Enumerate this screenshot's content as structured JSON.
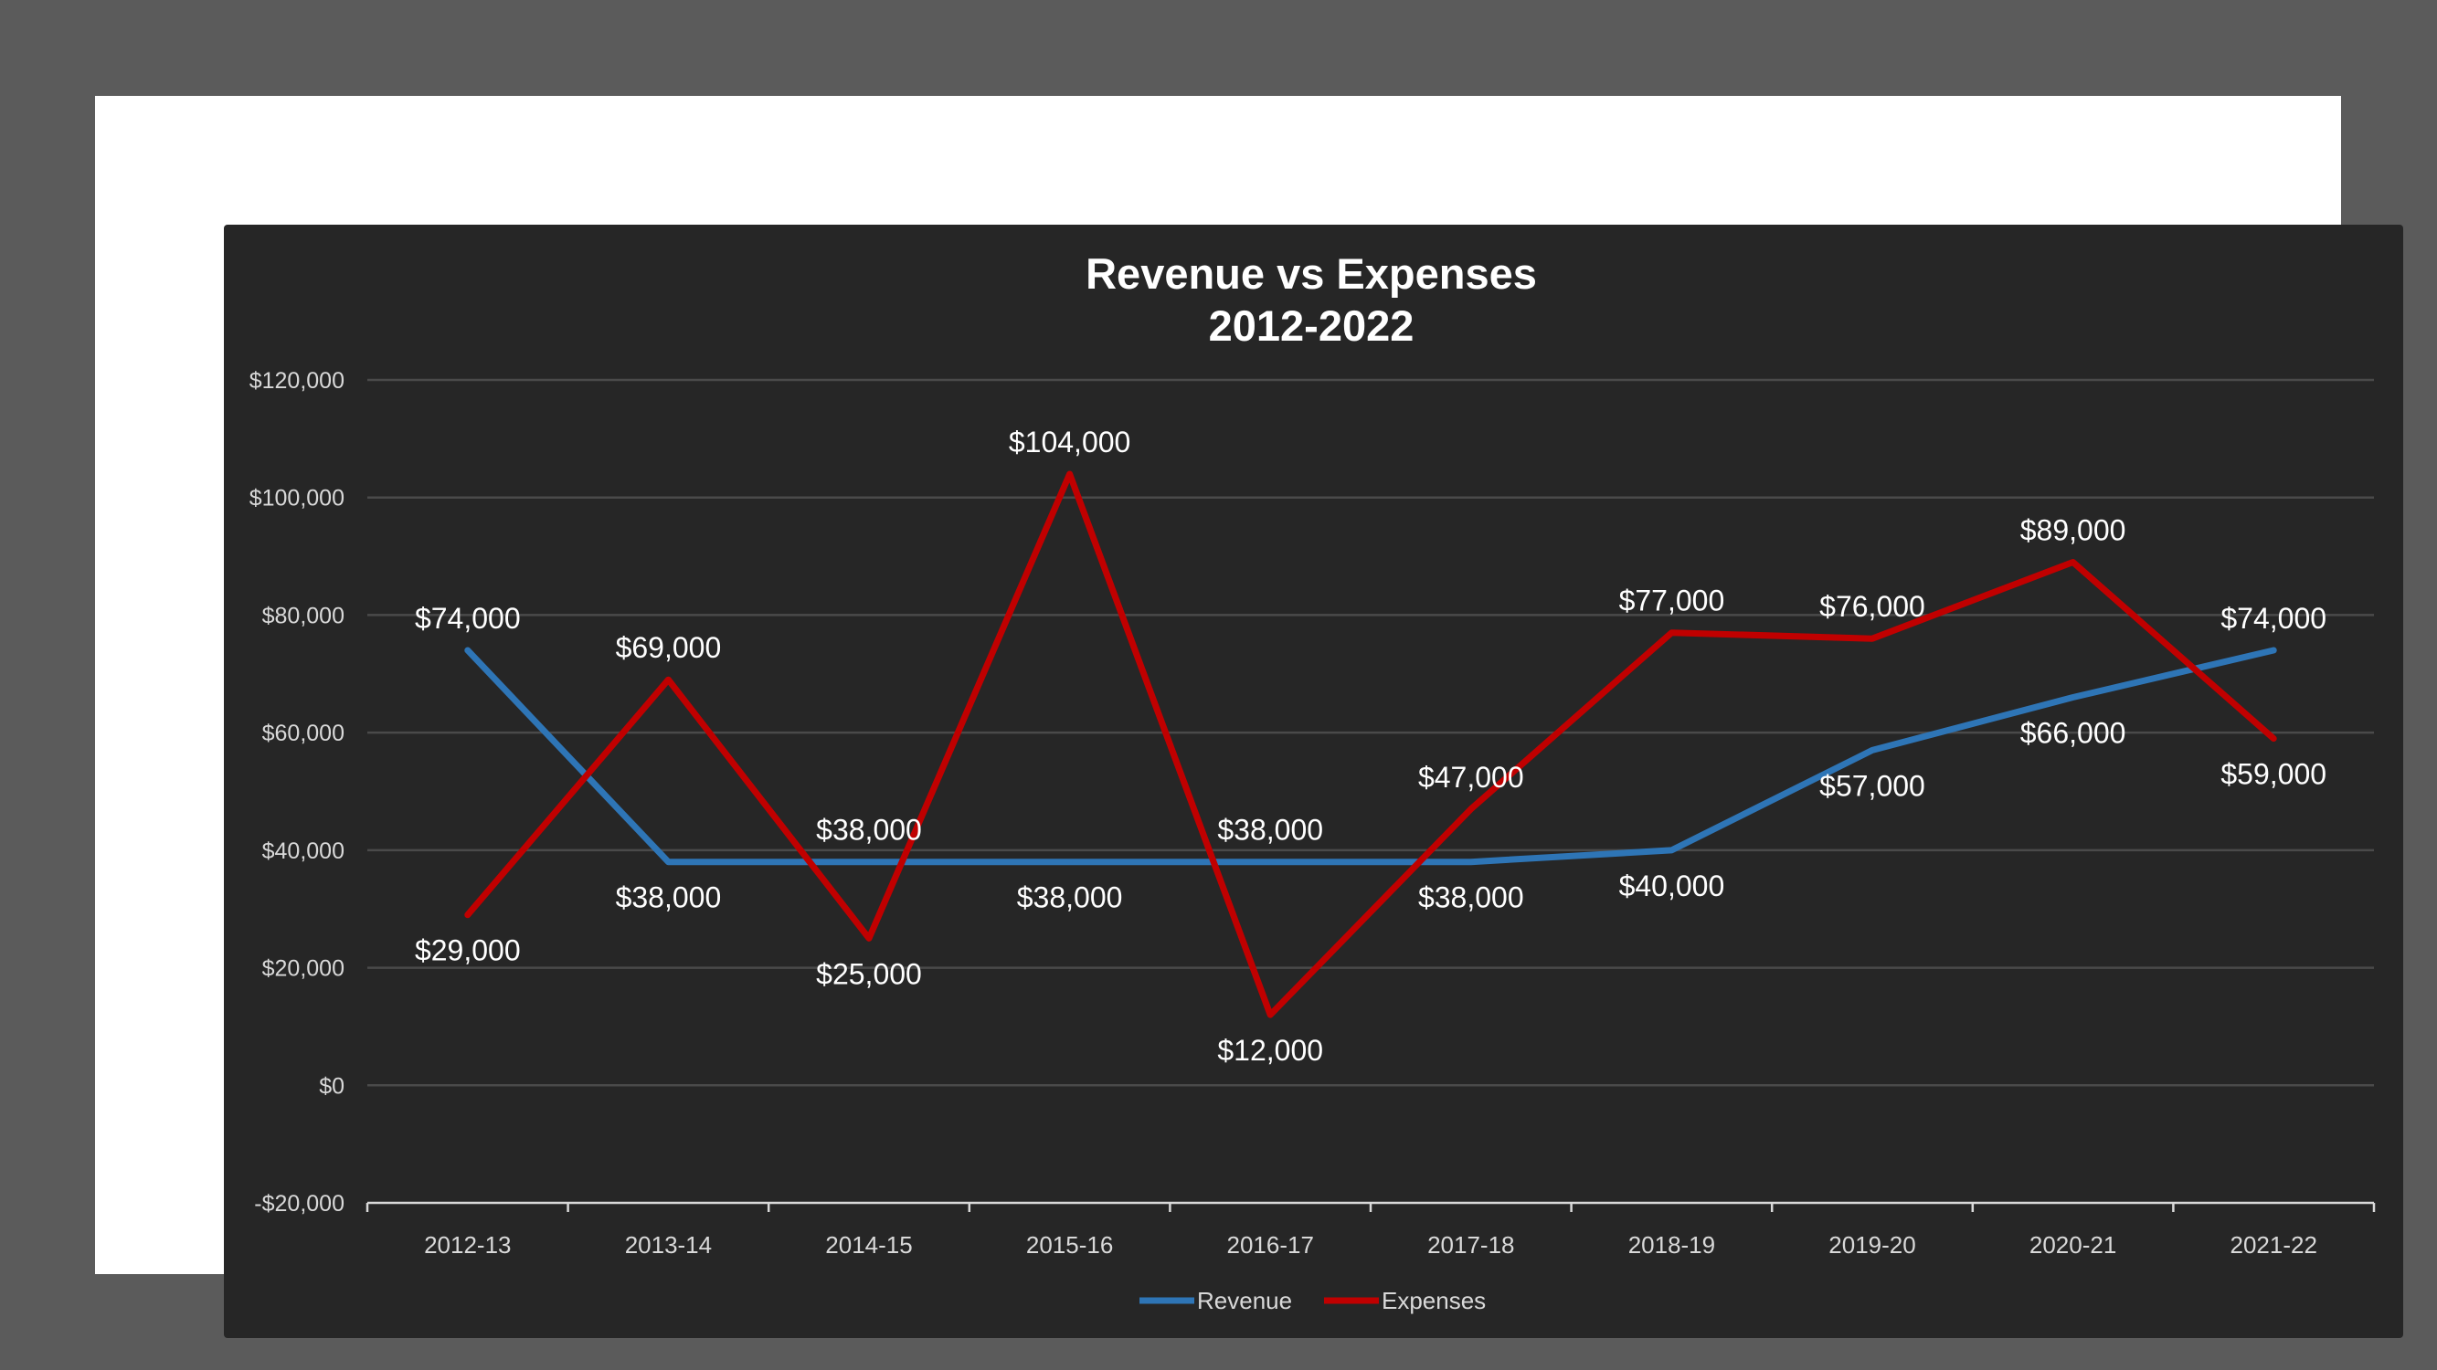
{
  "chart_data": {
    "type": "line",
    "title_line1": "Revenue vs Expenses",
    "title_line2": "2012-2022",
    "categories": [
      "2012-13",
      "2013-14",
      "2014-15",
      "2015-16",
      "2016-17",
      "2017-18",
      "2018-19",
      "2019-20",
      "2020-21",
      "2021-22"
    ],
    "ylim": [
      -20000,
      120000
    ],
    "yticks": [
      -20000,
      0,
      20000,
      40000,
      60000,
      80000,
      100000,
      120000
    ],
    "ytick_labels": [
      "-$20,000",
      "$0",
      "$20,000",
      "$40,000",
      "$60,000",
      "$80,000",
      "$100,000",
      "$120,000"
    ],
    "grid": true,
    "legend_position": "bottom",
    "series": [
      {
        "name": "Revenue",
        "color": "#2e75b6",
        "values": [
          74000,
          38000,
          38000,
          38000,
          38000,
          38000,
          40000,
          57000,
          66000,
          74000
        ],
        "labels": [
          "$74,000",
          "$38,000",
          "$38,000",
          "$38,000",
          "$38,000",
          "$38,000",
          "$40,000",
          "$57,000",
          "$66,000",
          "$74,000"
        ],
        "label_side": [
          "above",
          "below",
          "above",
          "below",
          "above",
          "below",
          "below",
          "below",
          "below",
          "above"
        ]
      },
      {
        "name": "Expenses",
        "color": "#c00000",
        "values": [
          29000,
          69000,
          25000,
          104000,
          12000,
          47000,
          77000,
          76000,
          89000,
          59000
        ],
        "labels": [
          "$29,000",
          "$69,000",
          "$25,000",
          "$104,000",
          "$12,000",
          "$47,000",
          "$77,000",
          "$76,000",
          "$89,000",
          "$59,000"
        ],
        "label_side": [
          "below",
          "above",
          "below",
          "above",
          "below",
          "above",
          "above",
          "above",
          "above",
          "below"
        ]
      }
    ]
  }
}
